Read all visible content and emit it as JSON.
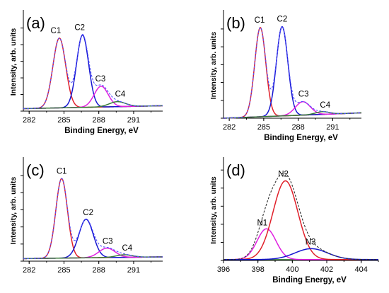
{
  "chart_data": [
    {
      "type": "line",
      "panel_label": "(a)",
      "xlabel": "Binding Energy, eV",
      "ylabel": "Intensity, arb. units",
      "xlim": [
        281.5,
        293.5
      ],
      "ylim": [
        0,
        1.15
      ],
      "xticks": [
        282,
        285,
        288,
        291
      ],
      "yticks": [
        0.0,
        0.2,
        0.4,
        0.6,
        0.8,
        1.0
      ],
      "baseline": [
        0.03,
        0.065
      ],
      "envelope_color": "#5050ff",
      "series": [
        {
          "name": "C1",
          "center": 284.6,
          "height": 0.84,
          "sigma": 0.55,
          "color": "#e0202a"
        },
        {
          "name": "C2",
          "center": 286.6,
          "height": 0.87,
          "sigma": 0.52,
          "color": "#1616d0"
        },
        {
          "name": "C3",
          "center": 288.2,
          "height": 0.25,
          "sigma": 0.6,
          "color": "#e020e0"
        },
        {
          "name": "C4",
          "center": 289.6,
          "height": 0.06,
          "sigma": 0.7,
          "color": "#3a7a3a"
        }
      ]
    },
    {
      "type": "line",
      "panel_label": "(b)",
      "xlabel": "Binding Energy, eV",
      "ylabel": "Intensity, arb. units",
      "xlim": [
        281.5,
        293.5
      ],
      "ylim": [
        0,
        1.15
      ],
      "xticks": [
        282,
        285,
        288,
        291
      ],
      "yticks": [
        0.0,
        0.2,
        0.4,
        0.6,
        0.8,
        1.0
      ],
      "baseline": [
        0.0,
        0.06
      ],
      "envelope_color": "#5050ff",
      "series": [
        {
          "name": "C1",
          "center": 284.7,
          "height": 1.0,
          "sigma": 0.48,
          "color": "#e0202a"
        },
        {
          "name": "C2",
          "center": 286.6,
          "height": 1.0,
          "sigma": 0.5,
          "color": "#1616d0"
        },
        {
          "name": "C3",
          "center": 288.4,
          "height": 0.15,
          "sigma": 0.65,
          "color": "#e020e0"
        },
        {
          "name": "C4",
          "center": 290.1,
          "height": 0.03,
          "sigma": 0.6,
          "color": "#3a7a3a"
        }
      ]
    },
    {
      "type": "line",
      "panel_label": "(c)",
      "xlabel": "",
      "ylabel": "Intensity, arb. units",
      "xlim": [
        281.5,
        293.5
      ],
      "ylim": [
        0,
        1.15
      ],
      "xticks": [
        282,
        285,
        288,
        291
      ],
      "yticks": [
        0.0,
        0.2,
        0.4,
        0.6,
        0.8,
        1.0
      ],
      "baseline": [
        0.03,
        0.05
      ],
      "envelope_color": "#5050ff",
      "series": [
        {
          "name": "C1",
          "center": 284.8,
          "height": 0.93,
          "sigma": 0.5,
          "color": "#e0202a"
        },
        {
          "name": "C2",
          "center": 286.9,
          "height": 0.45,
          "sigma": 0.62,
          "color": "#1616d0"
        },
        {
          "name": "C3",
          "center": 288.7,
          "height": 0.11,
          "sigma": 0.7,
          "color": "#e020e0"
        },
        {
          "name": "C4",
          "center": 290.2,
          "height": 0.03,
          "sigma": 0.7,
          "color": "#3a7a3a"
        }
      ]
    },
    {
      "type": "line",
      "panel_label": "(d)",
      "xlabel": "Binding Energy, eV",
      "ylabel": "Intensity, arb. units",
      "xlim": [
        396,
        405
      ],
      "ylim": [
        0,
        1.08
      ],
      "xticks": [
        396,
        398,
        400,
        402,
        404
      ],
      "yticks": [
        0.0,
        0.2,
        0.4,
        0.6,
        0.8,
        1.0
      ],
      "baseline": [
        0.01,
        0.01
      ],
      "envelope_color": "#303030",
      "series": [
        {
          "name": "N1",
          "center": 398.5,
          "height": 0.34,
          "sigma": 0.55,
          "color": "#e020e0"
        },
        {
          "name": "N2",
          "center": 399.6,
          "height": 0.87,
          "sigma": 0.72,
          "color": "#e0202a"
        },
        {
          "name": "N3",
          "center": 401.1,
          "height": 0.12,
          "sigma": 0.95,
          "color": "#1616d0"
        }
      ]
    }
  ]
}
